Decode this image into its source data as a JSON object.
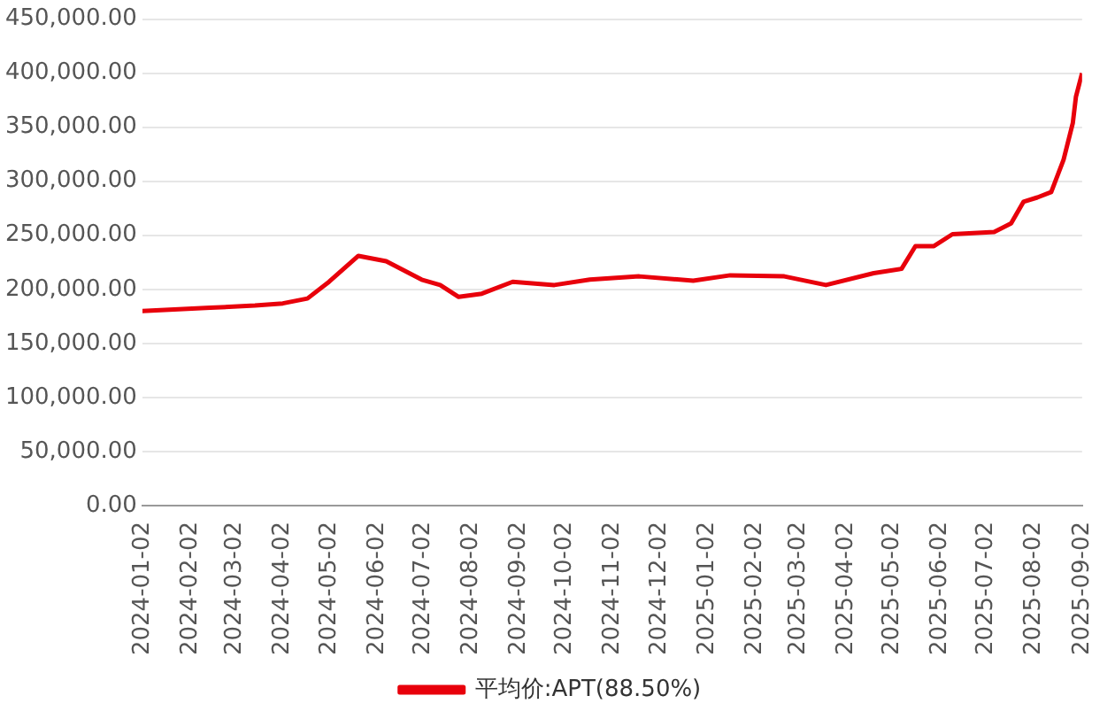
{
  "chart_data": {
    "type": "line",
    "x": [
      "2024-01-02",
      "2024-02-15",
      "2024-03-15",
      "2024-04-02",
      "2024-04-18",
      "2024-05-02",
      "2024-05-21",
      "2024-06-08",
      "2024-07-01",
      "2024-07-13",
      "2024-07-25",
      "2024-08-09",
      "2024-08-29",
      "2024-09-25",
      "2024-10-18",
      "2024-11-19",
      "2024-12-24",
      "2025-01-17",
      "2025-02-21",
      "2025-03-20",
      "2025-04-20",
      "2025-05-08",
      "2025-05-17",
      "2025-05-29",
      "2025-06-10",
      "2025-07-07",
      "2025-07-18",
      "2025-07-26",
      "2025-08-04",
      "2025-08-13",
      "2025-08-21",
      "2025-08-27",
      "2025-08-29",
      "2025-09-02"
    ],
    "series": [
      {
        "name": "平均价:APT(88.50%)",
        "color": "#e8000b",
        "values": [
          180000,
          183000,
          185000,
          187000,
          191500,
          207000,
          231000,
          226000,
          209000,
          204000,
          193000,
          196000,
          207000,
          204000,
          209000,
          212000,
          208000,
          213000,
          212000,
          204000,
          215000,
          219000,
          240000,
          240000,
          251000,
          253000,
          261000,
          281000,
          285000,
          290000,
          320000,
          354000,
          378000,
          400000
        ]
      }
    ],
    "xlim": [
      "2024-01-02",
      "2025-09-02"
    ],
    "xticks": [
      {
        "value": "2024-01-02",
        "label": "2024-01-02"
      },
      {
        "value": "2024-02-02",
        "label": "2024-02-02"
      },
      {
        "value": "2024-03-02",
        "label": "2024-03-02"
      },
      {
        "value": "2024-04-02",
        "label": "2024-04-02"
      },
      {
        "value": "2024-05-02",
        "label": "2024-05-02"
      },
      {
        "value": "2024-06-02",
        "label": "2024-06-02"
      },
      {
        "value": "2024-07-02",
        "label": "2024-07-02"
      },
      {
        "value": "2024-08-02",
        "label": "2024-08-02"
      },
      {
        "value": "2024-09-02",
        "label": "2024-09-02"
      },
      {
        "value": "2024-10-02",
        "label": "2024-10-02"
      },
      {
        "value": "2024-11-02",
        "label": "2024-11-02"
      },
      {
        "value": "2024-12-02",
        "label": "2024-12-02"
      },
      {
        "value": "2025-01-02",
        "label": "2025-01-02"
      },
      {
        "value": "2025-02-02",
        "label": "2025-02-02"
      },
      {
        "value": "2025-03-02",
        "label": "2025-03-02"
      },
      {
        "value": "2025-04-02",
        "label": "2025-04-02"
      },
      {
        "value": "2025-05-02",
        "label": "2025-05-02"
      },
      {
        "value": "2025-06-02",
        "label": "2025-06-02"
      },
      {
        "value": "2025-07-02",
        "label": "2025-07-02"
      },
      {
        "value": "2025-08-02",
        "label": "2025-08-02"
      },
      {
        "value": "2025-09-02",
        "label": "2025-09-02"
      }
    ],
    "ylim": [
      0,
      450000
    ],
    "yticks": [
      {
        "value": 0,
        "label": "0.00"
      },
      {
        "value": 50000,
        "label": "50,000.00"
      },
      {
        "value": 100000,
        "label": "100,000.00"
      },
      {
        "value": 150000,
        "label": "150,000.00"
      },
      {
        "value": 200000,
        "label": "200,000.00"
      },
      {
        "value": 250000,
        "label": "250,000.00"
      },
      {
        "value": 300000,
        "label": "300,000.00"
      },
      {
        "value": 350000,
        "label": "350,000.00"
      },
      {
        "value": 400000,
        "label": "400,000.00"
      },
      {
        "value": 450000,
        "label": "450,000.00"
      }
    ],
    "grid": "y",
    "legend": "bottom",
    "marker": "none",
    "line_style": "solid"
  }
}
